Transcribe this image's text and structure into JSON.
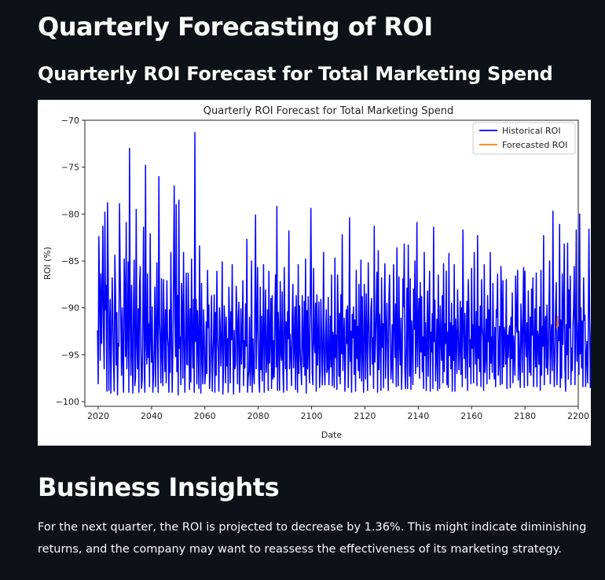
{
  "page": {
    "title": "Quarterly Forecasting of ROI",
    "subtitle": "Quarterly ROI Forecast for Total Marketing Spend",
    "insights_heading": "Business Insights",
    "insights_text": "For the next quarter, the ROI is projected to decrease by 1.36%. This might indicate diminishing returns, and the company may want to reassess the effectiveness of its marketing strategy."
  },
  "chart_data": {
    "type": "line",
    "title": "Quarterly ROI Forecast for Total Marketing Spend",
    "xlabel": "Date",
    "ylabel": "ROI (%)",
    "xlim": [
      2015,
      2200
    ],
    "ylim": [
      -100.5,
      -70
    ],
    "xticks": [
      2020,
      2040,
      2060,
      2080,
      2100,
      2120,
      2140,
      2160,
      2180,
      2200
    ],
    "yticks": [
      -70,
      -75,
      -80,
      -85,
      -90,
      -95,
      -100
    ],
    "legend_position": "top-right",
    "grid": false,
    "series": [
      {
        "name": "Historical ROI",
        "color": "#0000ff",
        "x_start": 2019.75,
        "x_step": 0.25,
        "values": [
          -92.4,
          -98.1,
          -82.4,
          -88.0,
          -95.6,
          -86.4,
          -93.8,
          -88.6,
          -81.3,
          -92.9,
          -96.5,
          -79.8,
          -90.2,
          -87.6,
          -98.9,
          -78.8,
          -85.7,
          -98.8,
          -91.9,
          -89.1,
          -99.1,
          -93.4,
          -86.8,
          -91.0,
          -95.8,
          -98.9,
          -84.4,
          -88.3,
          -96.1,
          -90.5,
          -99.3,
          -93.8,
          -94.1,
          -78.9,
          -86.2,
          -91.8,
          -97.2,
          -90.0,
          -95.6,
          -99.0,
          -84.8,
          -88.5,
          -95.2,
          -80.9,
          -96.5,
          -92.5,
          -85.1,
          -99.0,
          -73.0,
          -90.8,
          -97.2,
          -87.6,
          -94.9,
          -99.1,
          -89.4,
          -84.9,
          -98.3,
          -97.4,
          -79.5,
          -93.8,
          -96.5,
          -90.1,
          -99.0,
          -87.7,
          -85.6,
          -94.4,
          -98.6,
          -97.7,
          -90.7,
          -81.4,
          -96.2,
          -99.0,
          -74.8,
          -93.6,
          -96.0,
          -86.4,
          -95.3,
          -91.7,
          -98.4,
          -82.1,
          -93.3,
          -95.8,
          -89.9,
          -99.0,
          -97.2,
          -94.4,
          -87.8,
          -98.4,
          -92.7,
          -85.2,
          -94.1,
          -99.0,
          -76.0,
          -91.3,
          -93.7,
          -98.0,
          -86.9,
          -95.1,
          -98.3,
          -87.0,
          -92.5,
          -96.8,
          -90.2,
          -98.0,
          -87.1,
          -93.0,
          -94.1,
          -99.0,
          -90.2,
          -96.9,
          -84.1,
          -92.7,
          -99.0,
          -94.4,
          -86.6,
          -77.0,
          -91.4,
          -95.2,
          -79.0,
          -96.8,
          -88.7,
          -99.3,
          -78.5,
          -94.3,
          -93.1,
          -98.2,
          -87.4,
          -89.9,
          -97.5,
          -84.1,
          -93.2,
          -99.0,
          -93.0,
          -86.3,
          -96.0,
          -96.1,
          -86.3,
          -92.2,
          -98.7,
          -90.1,
          -97.9,
          -84.8,
          -93.0,
          -96.4,
          -89.1,
          -99.0,
          -71.3,
          -93.6,
          -89.1,
          -98.1,
          -90.3,
          -93.6,
          -98.6,
          -83.4,
          -92.7,
          -99.1,
          -87.4,
          -95.6,
          -98.1,
          -90.2,
          -92.8,
          -98.1,
          -96.9,
          -91.5,
          -97.0,
          -86.0,
          -92.1,
          -89.7,
          -98.6,
          -96.8,
          -93.2,
          -88.7,
          -98.9,
          -95.5,
          -93.2,
          -88.6,
          -99.0,
          -90.5,
          -97.2,
          -86.1,
          -93.3,
          -94.7,
          -98.9,
          -90.0,
          -92.0,
          -96.2,
          -93.5,
          -85.1,
          -99.2,
          -96.3,
          -89.8,
          -92.1,
          -98.0,
          -91.0,
          -96.2,
          -93.3,
          -99.0,
          -87.8,
          -91.5,
          -98.0,
          -90.4,
          -93.4,
          -85.4,
          -94.3,
          -99.2,
          -92.4,
          -96.5,
          -96.0,
          -87.7,
          -90.8,
          -98.1,
          -91.5,
          -89.4,
          -99.0,
          -95.5,
          -90.1,
          -96.0,
          -92.9,
          -87.1,
          -98.3,
          -93.5,
          -96.4,
          -89.6,
          -94.1,
          -82.7,
          -99.0,
          -97.4,
          -96.7,
          -91.0,
          -98.3,
          -95.9,
          -85.0,
          -99.0,
          -93.3,
          -96.7,
          -98.1,
          -89.2,
          -80.1,
          -96.5,
          -92.4,
          -85.7,
          -93.0,
          -97.5,
          -99.0,
          -87.8,
          -96.6,
          -90.9,
          -97.8,
          -93.2,
          -85.4,
          -99.0,
          -93.2,
          -88.1,
          -96.9,
          -95.3,
          -90.2,
          -98.8,
          -86.1,
          -95.9,
          -93.1,
          -89.0,
          -98.6,
          -88.7,
          -97.6,
          -93.5,
          -97.4,
          -90.2,
          -86.5,
          -96.3,
          -79.2,
          -98.8,
          -90.5,
          -93.4,
          -98.8,
          -87.2,
          -94.8,
          -95.6,
          -88.3,
          -96.6,
          -99.0,
          -85.7,
          -91.2,
          -96.5,
          -91.5,
          -98.8,
          -90.4,
          -93.3,
          -81.8,
          -96.5,
          -92.8,
          -95.0,
          -98.3,
          -91.1,
          -87.5,
          -96.4,
          -94.0,
          -89.9,
          -98.7,
          -88.7,
          -94.5,
          -99.0,
          -85.4,
          -97.0,
          -89.8,
          -94.6,
          -96.4,
          -98.2,
          -88.7,
          -93.5,
          -96.3,
          -89.3,
          -97.2,
          -84.8,
          -99.1,
          -90.3,
          -96.5,
          -88.8,
          -95.0,
          -98.0,
          -89.3,
          -79.4,
          -90.6,
          -96.9,
          -98.2,
          -85.8,
          -93.5,
          -94.8,
          -89.5,
          -98.9,
          -88.6,
          -96.1,
          -93.5,
          -89.4,
          -98.5,
          -96.8,
          -89.1,
          -92.8,
          -98.2,
          -94.2,
          -84.1,
          -96.3,
          -98.2,
          -93.0,
          -90.2,
          -96.9,
          -96.5,
          -88.9,
          -98.2,
          -95.4,
          -90.9,
          -96.3,
          -86.5,
          -98.3,
          -92.6,
          -93.2,
          -98.5,
          -84.7,
          -95.3,
          -92.9,
          -98.7,
          -86.5,
          -91.3,
          -97.3,
          -90.6,
          -98.1,
          -88.6,
          -94.9,
          -82.2,
          -96.7,
          -93.6,
          -91.1,
          -98.9,
          -95.3,
          -90.2,
          -93.8,
          -89.8,
          -98.5,
          -94.3,
          -80.4,
          -95.7,
          -92.5,
          -99.0,
          -90.7,
          -93.2,
          -89.9,
          -97.1,
          -91.3,
          -98.9,
          -86.0,
          -95.4,
          -92.0,
          -96.7,
          -87.5,
          -97.5,
          -94.5,
          -84.9,
          -97.8,
          -88.8,
          -95.2,
          -99.0,
          -87.5,
          -91.8,
          -97.6,
          -88.5,
          -93.4,
          -98.8,
          -85.2,
          -91.0,
          -94.7,
          -97.2,
          -90.2,
          -89.0,
          -96.0,
          -93.2,
          -98.6,
          -81.3,
          -95.8,
          -93.5,
          -90.1,
          -86.2,
          -99.0,
          -83.9,
          -96.6,
          -90.7,
          -92.7,
          -98.8,
          -86.8,
          -94.2,
          -91.7,
          -98.5,
          -89.8,
          -85.3,
          -97.5,
          -92.8,
          -89.5,
          -95.1,
          -98.8,
          -89.2,
          -86.5,
          -92.8,
          -97.6,
          -96.0,
          -91.8,
          -98.0,
          -85.4,
          -91.7,
          -95.3,
          -89.6,
          -98.4,
          -83.6,
          -94.1,
          -98.3,
          -86.7,
          -93.7,
          -96.1,
          -91.1,
          -98.7,
          -95.2,
          -86.9,
          -89.9,
          -83.2,
          -96.8,
          -98.6,
          -94.2,
          -87.9,
          -98.6,
          -83.3,
          -91.6,
          -97.3,
          -86.9,
          -98.7,
          -91.4,
          -93.4,
          -98.2,
          -88.0,
          -92.3,
          -85.0,
          -97.0,
          -93.9,
          -80.9,
          -96.3,
          -91.9,
          -89.0,
          -97.5,
          -87.3,
          -94.7,
          -88.8,
          -96.8,
          -93.1,
          -98.6,
          -84.1,
          -95.1,
          -91.6,
          -98.8,
          -93.6,
          -88.2,
          -97.3,
          -91.6,
          -86.1,
          -98.9,
          -92.6,
          -94.7,
          -90.6,
          -98.6,
          -81.4,
          -93.6,
          -89.2,
          -97.8,
          -95.2,
          -91.2,
          -98.8,
          -86.5,
          -92.5,
          -98.6,
          -89.8,
          -93.4,
          -95.6,
          -88.7,
          -98.0,
          -85.3,
          -96.8,
          -91.7,
          -93.8,
          -86.1,
          -98.2,
          -92.6,
          -98.5,
          -84.2,
          -95.1,
          -91.6,
          -96.5,
          -89.5,
          -98.9,
          -91.9,
          -95.6,
          -85.4,
          -98.9,
          -91.2,
          -93.1,
          -97.0,
          -88.1,
          -92.4,
          -96.6,
          -94.3,
          -89.3,
          -97.1,
          -90.0,
          -98.4,
          -81.7,
          -92.2,
          -95.4,
          -90.6,
          -97.5,
          -94.1,
          -89.3,
          -98.8,
          -87.0,
          -90.3,
          -96.3,
          -93.4,
          -98.1,
          -85.8,
          -94.3,
          -91.8,
          -98.0,
          -84.1,
          -93.7,
          -96.0,
          -90.4,
          -98.3,
          -82.3,
          -95.4,
          -92.0,
          -96.8,
          -89.8,
          -98.4,
          -87.0,
          -92.0,
          -93.1,
          -98.8,
          -85.4,
          -96.9,
          -95.1,
          -91.2,
          -98.1,
          -88.7,
          -93.6,
          -90.2,
          -97.6,
          -84.1,
          -95.9,
          -93.1,
          -96.9,
          -87.4,
          -94.2,
          -97.6,
          -92.1,
          -98.4,
          -90.2,
          -91.0,
          -86.4,
          -97.2,
          -95.6,
          -92.0,
          -98.2,
          -85.6,
          -89.2,
          -98.1,
          -87.1,
          -96.3,
          -92.1,
          -93.0,
          -96.0,
          -87.0,
          -98.6,
          -92.9,
          -95.3,
          -92.7,
          -91.9,
          -98.5,
          -91.0,
          -95.4,
          -88.4,
          -98.0,
          -93.0,
          -95.0,
          -97.2,
          -86.6,
          -91.6,
          -92.6,
          -86.0,
          -97.7,
          -92.5,
          -95.8,
          -98.5,
          -89.6,
          -92.3,
          -96.9,
          -91.1,
          -85.7,
          -98.5,
          -86.1,
          -93.2,
          -95.2,
          -91.6,
          -98.3,
          -88.2,
          -93.8,
          -96.9,
          -91.0,
          -97.2,
          -88.0,
          -92.9,
          -86.8,
          -98.4,
          -94.0,
          -90.1,
          -96.3,
          -86.3,
          -98.4,
          -92.5,
          -93.3,
          -96.0,
          -89.9,
          -98.8,
          -86.0,
          -97.2,
          -92.0,
          -94.1,
          -82.3,
          -98.2,
          -91.9,
          -90.9,
          -96.4,
          -89.7,
          -97.1,
          -95.2,
          -90.4,
          -85.0,
          -98.1,
          -93.1,
          -91.8,
          -96.7,
          -79.7,
          -93.6,
          -98.4,
          -94.9,
          -90.0,
          -87.3,
          -98.2,
          -95.0,
          -91.6,
          -93.5,
          -81.1,
          -98.5,
          -91.3,
          -97.5,
          -86.4,
          -93.9,
          -90.4,
          -83.2,
          -96.3,
          -98.9,
          -91.8,
          -95.0,
          -83.1,
          -97.6,
          -88.1,
          -92.1,
          -86.6,
          -98.2,
          -94.3,
          -96.7,
          -91.9,
          -89.9,
          -85.6,
          -98.2,
          -92.4,
          -81.7,
          -95.7,
          -94.2,
          -91.6,
          -97.1,
          -80.0,
          -94.9,
          -90.0,
          -96.4,
          -91.4,
          -98.4,
          -86.8,
          -91.3,
          -90.8,
          -98.4,
          -95.3,
          -93.6,
          -98.0,
          -92.2,
          -81.6,
          -90.8,
          -98.5,
          -93.9,
          -90.6,
          -97.9,
          -94.5,
          -93.0,
          -98.5,
          -93.8
        ]
      },
      {
        "name": "Forecasted ROI",
        "color": "#ff7f0e",
        "x": [
          2192.0,
          2192.25,
          2192.5
        ],
        "values": [
          -92.2,
          -90.9,
          -92.0
        ]
      }
    ]
  }
}
